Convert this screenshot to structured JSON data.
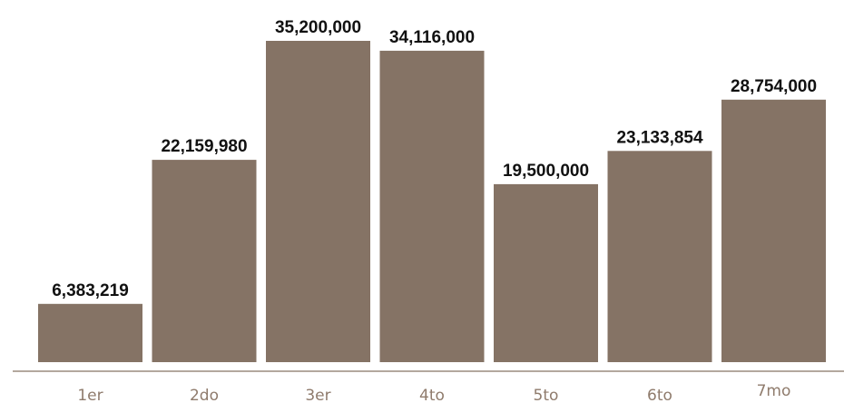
{
  "chart_data": {
    "type": "bar",
    "title": "",
    "xlabel": "",
    "ylabel": "",
    "categories": [
      "1er",
      "2do",
      "3er",
      "4to",
      "5to",
      "6to",
      "7mo"
    ],
    "values": [
      6383219,
      22159980,
      35200000,
      34116000,
      19500000,
      23133854,
      28754000
    ],
    "value_labels": [
      "6,383,219",
      "22,159,980",
      "35,200,000",
      "34,116,000",
      "19,500,000",
      "23,133,854",
      "28,754,000"
    ],
    "ylim": [
      0,
      38000000
    ],
    "grid": false,
    "legend": "none",
    "colors": {
      "bar": "#857365",
      "axis_line": "#9c8b7e",
      "tick_label": "#8f7b6c",
      "value_label": "#111111"
    }
  }
}
